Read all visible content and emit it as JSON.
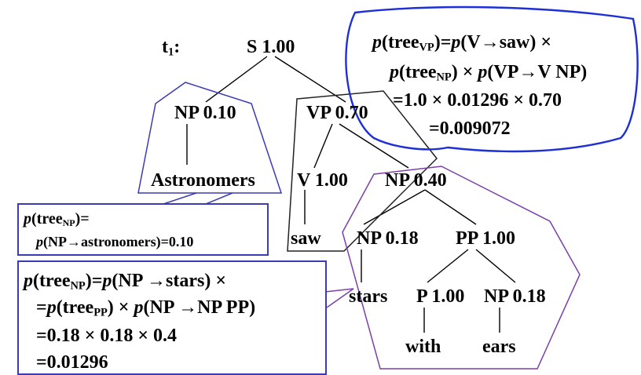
{
  "tree": {
    "label": "t",
    "label_sub": "1",
    "label_suffix": ":",
    "nodes": {
      "S": "S 1.00",
      "NP_top": "NP 0.10",
      "VP": "VP 0.70",
      "Astronomers": "Astronomers",
      "V": "V 1.00",
      "NP_040": "NP 0.40",
      "saw": "saw",
      "NP_018a": "NP 0.18",
      "PP": "PP 1.00",
      "stars": "stars",
      "P": "P 1.00",
      "NP_018b": "NP 0.18",
      "with": "with",
      "ears": "ears"
    }
  },
  "bubble_vp": {
    "l1_a": "p",
    "l1_b": "(tree",
    "l1_sub": "VP",
    "l1_c": ")",
    "l1_d": "=",
    "l1_e": "p",
    "l1_f": "(V→saw) ×",
    "l2_a": "p",
    "l2_b": "(tree",
    "l2_sub": "NP",
    "l2_c": ") × ",
    "l2_d": "p",
    "l2_e": "(VP→V NP)",
    "l3": "=1.0 × 0.01296 × 0.70",
    "l4": "=0.009072"
  },
  "box_np_astro": {
    "l1_a": "p",
    "l1_b": "(tree",
    "l1_sub": "NP",
    "l1_c": ")=",
    "l2_a": "p",
    "l2_b": "(NP→astronomers)=0.10"
  },
  "box_np_stars": {
    "l1_a": "p",
    "l1_b": "(tree",
    "l1_sub": "NP",
    "l1_c": ")=",
    "l1_d": "p",
    "l1_e": "(NP →stars) ×",
    "l2_a": "=",
    "l2_b": "p",
    "l2_c": "(tree",
    "l2_sub": "PP",
    "l2_d": ") × ",
    "l2_e": "p",
    "l2_f": "(NP →NP PP)",
    "l3": "=0.18 × 0.18 × 0.4",
    "l4": "=0.01296"
  },
  "colors": {
    "blue": "#3b3bb5",
    "purple": "#7a3fa8",
    "bubble": "#1d2fd6"
  }
}
